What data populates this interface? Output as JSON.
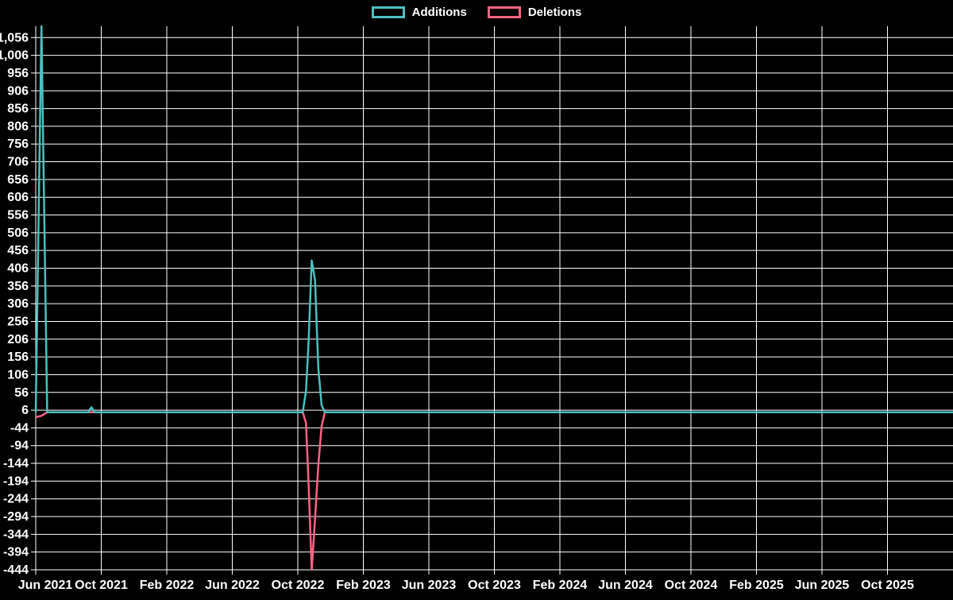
{
  "legend": {
    "items": [
      {
        "label": "Additions",
        "color": "#4bc0c0"
      },
      {
        "label": "Deletions",
        "color": "#ff6384"
      }
    ]
  },
  "chart_data": {
    "type": "line",
    "title": "",
    "xlabel": "",
    "ylabel": "",
    "background": "#000000",
    "grid": true,
    "grid_color": "#ffffff",
    "text_color": "#ffffff",
    "legend_position": "top-center",
    "x_axis": {
      "unit": "months since Jun 2021",
      "min": 0,
      "max": 56,
      "tick_months": [
        0,
        4,
        8,
        12,
        16,
        20,
        24,
        28,
        32,
        36,
        40,
        44,
        48,
        52
      ],
      "tick_labels": [
        "Jun 2021",
        "Oct 2021",
        "Feb 2022",
        "Jun 2022",
        "Oct 2022",
        "Feb 2023",
        "Jun 2023",
        "Oct 2023",
        "Feb 2024",
        "Jun 2024",
        "Oct 2024",
        "Feb 2025",
        "Jun 2025",
        "Oct 2025"
      ]
    },
    "y_axis": {
      "min": -444,
      "max": 1088,
      "ticks": [
        1056,
        1006,
        956,
        906,
        856,
        806,
        756,
        706,
        656,
        606,
        556,
        506,
        456,
        406,
        356,
        306,
        256,
        206,
        156,
        106,
        56,
        6,
        -44,
        -94,
        -144,
        -194,
        -244,
        -294,
        -344,
        -394,
        -444
      ]
    },
    "series": [
      {
        "name": "Deletions",
        "color": "#ff6384",
        "points": [
          [
            0,
            -14
          ],
          [
            0.35,
            -10
          ],
          [
            0.7,
            0
          ],
          [
            3.2,
            0
          ],
          [
            3.4,
            0
          ],
          [
            3.6,
            0
          ],
          [
            16.3,
            0
          ],
          [
            16.5,
            -30
          ],
          [
            16.65,
            -190
          ],
          [
            16.85,
            -444
          ],
          [
            17.05,
            -300
          ],
          [
            17.25,
            -150
          ],
          [
            17.45,
            -40
          ],
          [
            17.65,
            0
          ],
          [
            56,
            0
          ]
        ]
      },
      {
        "name": "Additions",
        "color": "#4bc0c0",
        "points": [
          [
            0,
            0
          ],
          [
            0.35,
            1088
          ],
          [
            0.7,
            0
          ],
          [
            3.2,
            0
          ],
          [
            3.4,
            14
          ],
          [
            3.6,
            0
          ],
          [
            16.3,
            0
          ],
          [
            16.5,
            60
          ],
          [
            16.65,
            190
          ],
          [
            16.85,
            428
          ],
          [
            17.05,
            372
          ],
          [
            17.25,
            125
          ],
          [
            17.45,
            20
          ],
          [
            17.65,
            0
          ],
          [
            56,
            0
          ]
        ]
      }
    ]
  },
  "layout_note": "additions and deletions over time line chart"
}
